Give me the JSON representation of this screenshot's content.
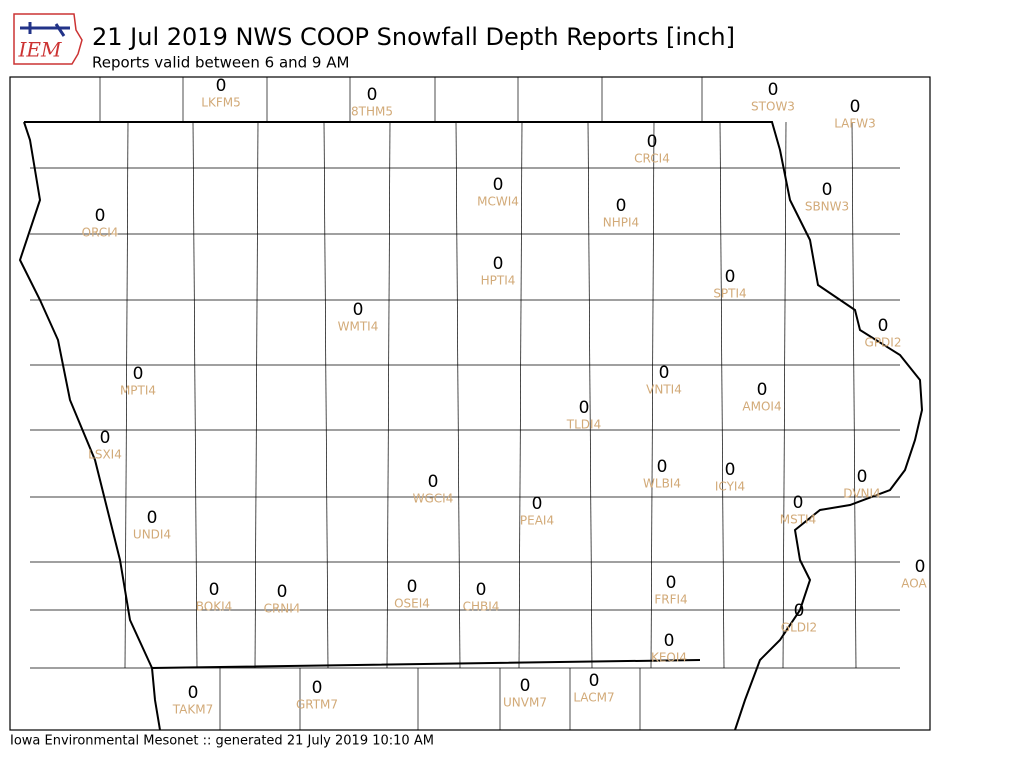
{
  "header": {
    "logo_text": "IEM",
    "title": "21 Jul 2019 NWS COOP Snowfall Depth Reports [inch]",
    "subtitle": "Reports valid between 6 and 9 AM"
  },
  "stations": [
    {
      "id": "LKFM5",
      "value": 0
    },
    {
      "id": "8THM5",
      "value": 0
    },
    {
      "id": "STOW3",
      "value": 0
    },
    {
      "id": "LAFW3",
      "value": 0
    },
    {
      "id": "CRCI4",
      "value": 0
    },
    {
      "id": "MCWI4",
      "value": 0
    },
    {
      "id": "NHPI4",
      "value": 0
    },
    {
      "id": "SBNW3",
      "value": 0
    },
    {
      "id": "ORCI4",
      "value": 0
    },
    {
      "id": "HPTI4",
      "value": 0
    },
    {
      "id": "SPTI4",
      "value": 0
    },
    {
      "id": "WMTI4",
      "value": 0
    },
    {
      "id": "GPDI2",
      "value": 0
    },
    {
      "id": "MPTI4",
      "value": 0
    },
    {
      "id": "VNTI4",
      "value": 0
    },
    {
      "id": "AMOI4",
      "value": 0
    },
    {
      "id": "TLDI4",
      "value": 0
    },
    {
      "id": "LSXI4",
      "value": 0
    },
    {
      "id": "WLBI4",
      "value": 0
    },
    {
      "id": "ICYI4",
      "value": 0
    },
    {
      "id": "DVNI4",
      "value": 0
    },
    {
      "id": "WGCI4",
      "value": 0
    },
    {
      "id": "PEAI4",
      "value": 0
    },
    {
      "id": "MSTI4",
      "value": 0
    },
    {
      "id": "UNDI4",
      "value": 0
    },
    {
      "id": "AOA",
      "value": 0
    },
    {
      "id": "BOKI4",
      "value": 0
    },
    {
      "id": "CRNI4",
      "value": 0
    },
    {
      "id": "OSEI4",
      "value": 0
    },
    {
      "id": "CHBI4",
      "value": 0
    },
    {
      "id": "FRFI4",
      "value": 0
    },
    {
      "id": "GLDI2",
      "value": 0
    },
    {
      "id": "KEOI4",
      "value": 0
    },
    {
      "id": "TAKM7",
      "value": 0
    },
    {
      "id": "GRTM7",
      "value": 0
    },
    {
      "id": "UNVM7",
      "value": 0
    },
    {
      "id": "LACM7",
      "value": 0
    }
  ],
  "footer": "Iowa Environmental Mesonet :: generated 21 July 2019 10:10 AM"
}
